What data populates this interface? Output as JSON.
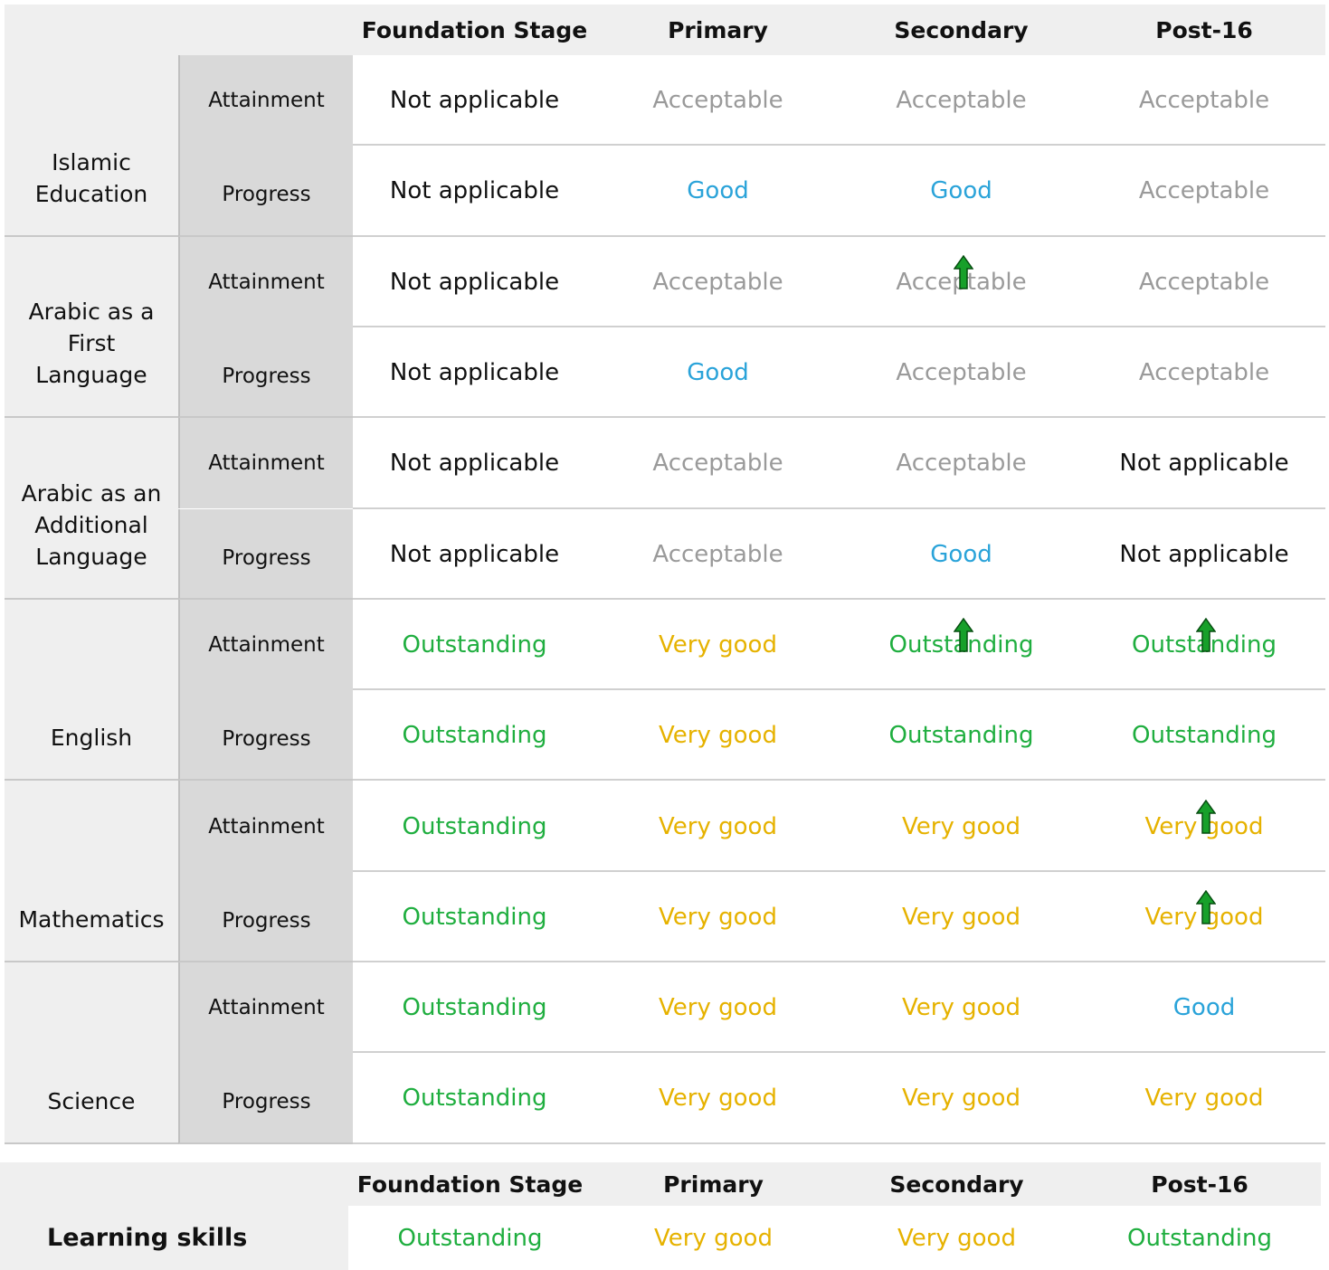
{
  "table": {
    "headers": [
      "Foundation Stage",
      "Primary",
      "Secondary",
      "Post-16"
    ],
    "subjects": [
      {
        "name": "Islamic Education",
        "rows": [
          {
            "measure": "Attainment",
            "cells": [
              {
                "text": "Not applicable"
              },
              {
                "text": "Acceptable"
              },
              {
                "text": "Acceptable"
              },
              {
                "text": "Acceptable"
              }
            ]
          },
          {
            "measure": "Progress",
            "cells": [
              {
                "text": "Not applicable"
              },
              {
                "text": "Good"
              },
              {
                "text": "Good"
              },
              {
                "text": "Acceptable"
              }
            ]
          }
        ]
      },
      {
        "name": "Arabic as a First Language",
        "rows": [
          {
            "measure": "Attainment",
            "cells": [
              {
                "text": "Not applicable"
              },
              {
                "text": "Acceptable"
              },
              {
                "text": "Acceptable",
                "improved": true
              },
              {
                "text": "Acceptable"
              }
            ]
          },
          {
            "measure": "Progress",
            "cells": [
              {
                "text": "Not applicable"
              },
              {
                "text": "Good"
              },
              {
                "text": "Acceptable"
              },
              {
                "text": "Acceptable"
              }
            ]
          }
        ]
      },
      {
        "name": "Arabic as an Additional Language",
        "rows": [
          {
            "measure": "Attainment",
            "cells": [
              {
                "text": "Not applicable"
              },
              {
                "text": "Acceptable"
              },
              {
                "text": "Acceptable"
              },
              {
                "text": "Not applicable"
              }
            ]
          },
          {
            "measure": "Progress",
            "cells": [
              {
                "text": "Not applicable"
              },
              {
                "text": "Acceptable"
              },
              {
                "text": "Good"
              },
              {
                "text": "Not applicable"
              }
            ]
          }
        ]
      },
      {
        "name": "English",
        "rows": [
          {
            "measure": "Attainment",
            "cells": [
              {
                "text": "Outstanding"
              },
              {
                "text": "Very good"
              },
              {
                "text": "Outstanding",
                "improved": true
              },
              {
                "text": "Outstanding",
                "improved": true
              }
            ]
          },
          {
            "measure": "Progress",
            "cells": [
              {
                "text": "Outstanding"
              },
              {
                "text": "Very good"
              },
              {
                "text": "Outstanding"
              },
              {
                "text": "Outstanding"
              }
            ]
          }
        ]
      },
      {
        "name": "Mathematics",
        "rows": [
          {
            "measure": "Attainment",
            "cells": [
              {
                "text": "Outstanding"
              },
              {
                "text": "Very good"
              },
              {
                "text": "Very good"
              },
              {
                "text": "Very good",
                "improved": true
              }
            ]
          },
          {
            "measure": "Progress",
            "cells": [
              {
                "text": "Outstanding"
              },
              {
                "text": "Very good"
              },
              {
                "text": "Very good"
              },
              {
                "text": "Very good",
                "improved": true
              }
            ]
          }
        ]
      },
      {
        "name": "Science",
        "rows": [
          {
            "measure": "Attainment",
            "cells": [
              {
                "text": "Outstanding"
              },
              {
                "text": "Very good"
              },
              {
                "text": "Very good"
              },
              {
                "text": "Good"
              }
            ]
          },
          {
            "measure": "Progress",
            "cells": [
              {
                "text": "Outstanding"
              },
              {
                "text": "Very good"
              },
              {
                "text": "Very good"
              },
              {
                "text": "Very good"
              }
            ]
          }
        ]
      }
    ]
  },
  "learning_skills": {
    "headers": [
      "Foundation Stage",
      "Primary",
      "Secondary",
      "Post-16"
    ],
    "label": "Learning skills",
    "cells": [
      "Outstanding",
      "Very good",
      "Very good",
      "Outstanding"
    ]
  },
  "colors": {
    "Not applicable": "#111111",
    "Acceptable": "#9a9a9a",
    "Good": "#2aa3d9",
    "Very good": "#e6b200",
    "Outstanding": "#1fae3f"
  }
}
